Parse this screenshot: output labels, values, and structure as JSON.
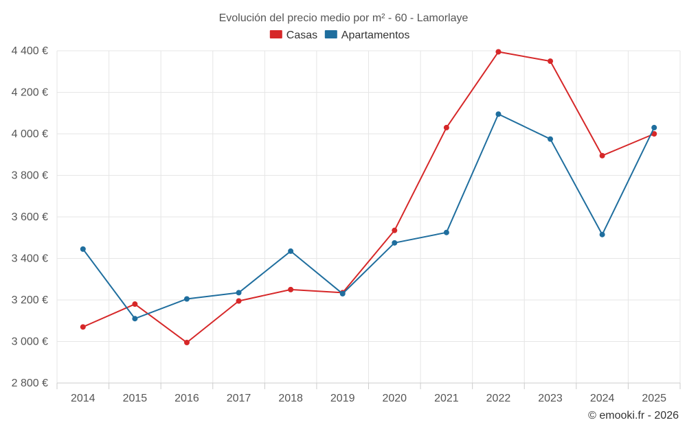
{
  "chart_data": {
    "type": "line",
    "title": "Evolución del precio medio por m² - 60 - Lamorlaye",
    "categories": [
      "2014",
      "2015",
      "2016",
      "2017",
      "2018",
      "2019",
      "2020",
      "2021",
      "2022",
      "2023",
      "2024",
      "2025"
    ],
    "series": [
      {
        "name": "Casas",
        "color": "#d62728",
        "values": [
          3070,
          3180,
          2995,
          3195,
          3250,
          3235,
          3535,
          4030,
          4395,
          4350,
          3895,
          4000
        ]
      },
      {
        "name": "Apartamentos",
        "color": "#1f6e9e",
        "values": [
          3445,
          3110,
          3205,
          3235,
          3435,
          3230,
          3475,
          3525,
          4095,
          3975,
          3515,
          4030
        ]
      }
    ],
    "ylim": [
      2800,
      4400
    ],
    "yticks": [
      2800,
      3000,
      3200,
      3400,
      3600,
      3800,
      4000,
      4200,
      4400
    ],
    "ytick_labels": [
      "2 800 €",
      "3 000 €",
      "3 200 €",
      "3 400 €",
      "3 600 €",
      "3 800 €",
      "4 000 €",
      "4 200 €",
      "4 400 €"
    ],
    "xlabel": "",
    "ylabel": "",
    "grid": true,
    "legend_position": "top-center"
  },
  "credit": "© emooki.fr - 2026"
}
